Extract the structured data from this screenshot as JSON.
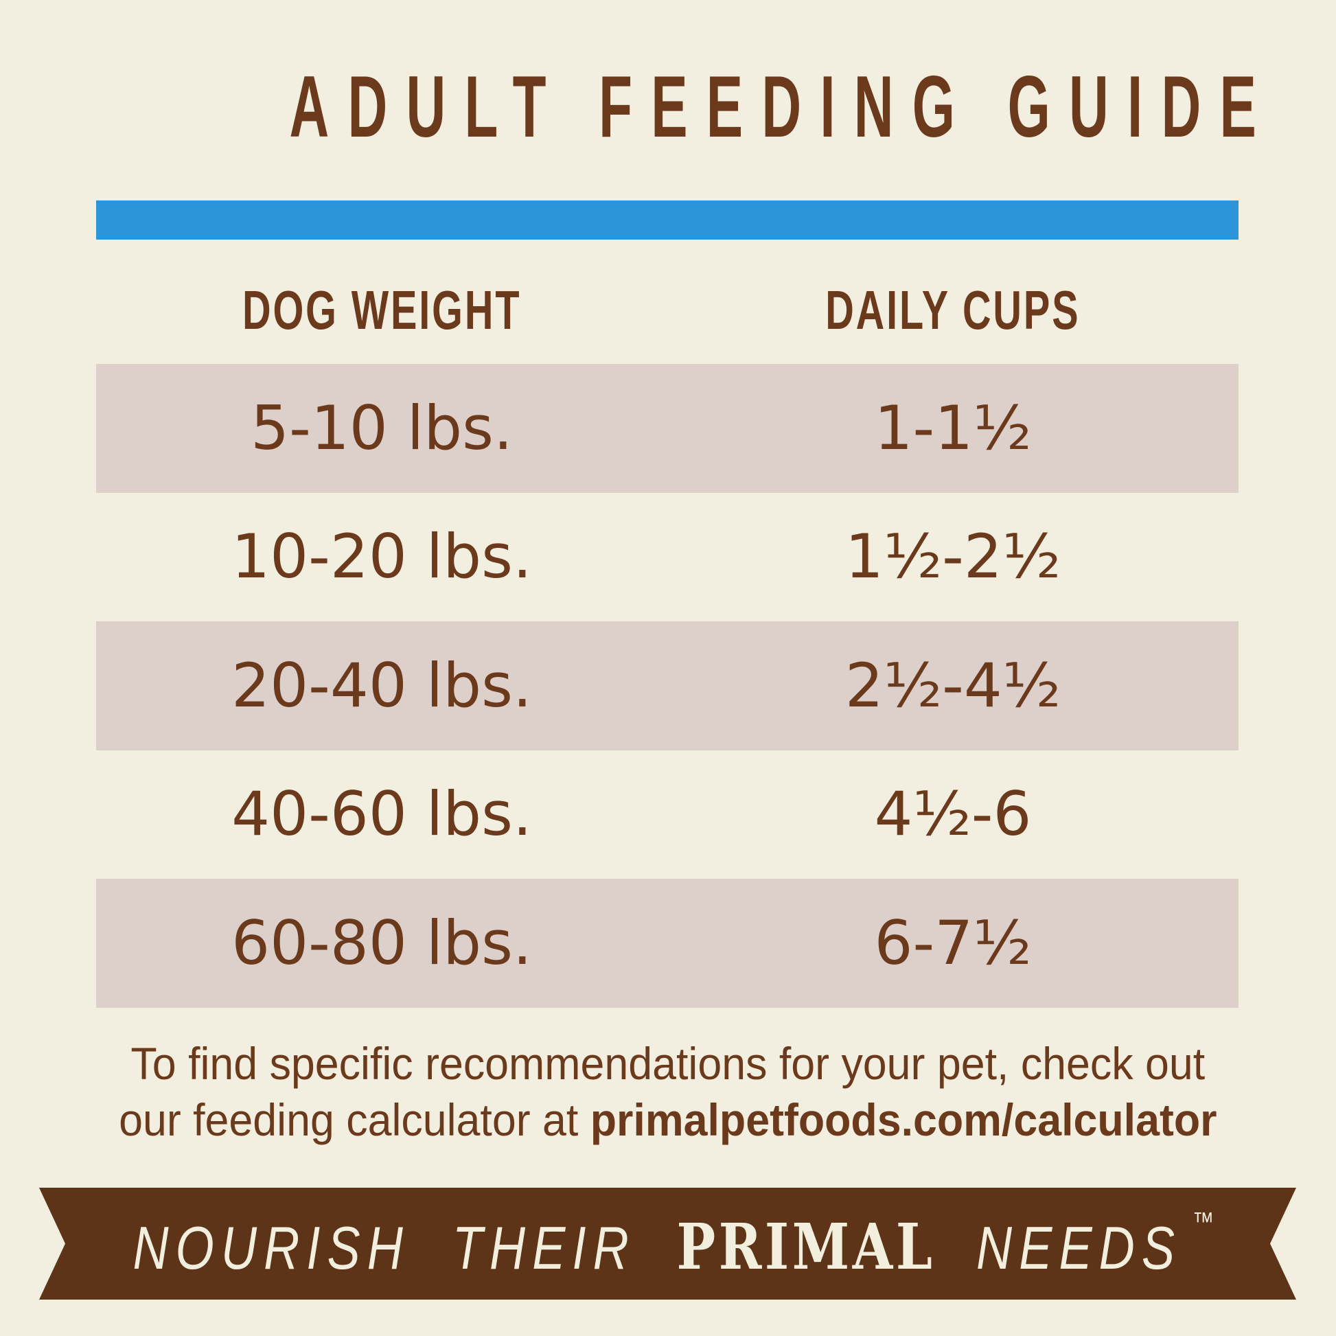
{
  "title": "ADULT FEEDING GUIDE",
  "table": {
    "col_weight": "DOG WEIGHT",
    "col_cups": "DAILY CUPS",
    "rows": [
      {
        "weight": "5-10 lbs.",
        "cups": "1-1½"
      },
      {
        "weight": "10-20 lbs.",
        "cups": "1½-2½"
      },
      {
        "weight": "20-40 lbs.",
        "cups": "2½-4½"
      },
      {
        "weight": "40-60 lbs.",
        "cups": "4½-6"
      },
      {
        "weight": "60-80 lbs.",
        "cups": "6-7½"
      }
    ]
  },
  "footer": {
    "line1": "To find specific recommendations for your pet, check out",
    "line2_prefix": "our feeding calculator at ",
    "line2_url": "primalpetfoods.com/calculator"
  },
  "ribbon": {
    "word1": "NOURISH",
    "word2": "THEIR",
    "brand": "PRIMAL",
    "word4": "NEEDS",
    "trademark": "™"
  },
  "colors": {
    "background": "#f2efe0",
    "text_brown": "#6b3a1c",
    "row_stripe": "#ddcfc9",
    "divider_blue": "#2c95d9",
    "ribbon_brown": "#5d3418",
    "ribbon_text": "#f2efdf"
  }
}
